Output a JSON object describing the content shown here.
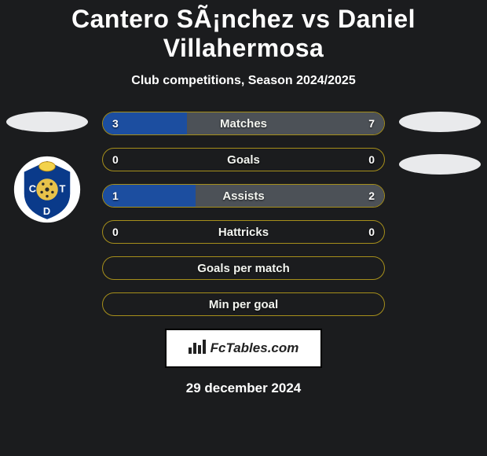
{
  "header": {
    "title": "Cantero SÃ¡nchez vs Daniel Villahermosa",
    "subtitle": "Club competitions, Season 2024/2025"
  },
  "players": {
    "left": {
      "team_badge_bg": "#ffffff",
      "team_badge_shield": "#0a3a8a",
      "team_badge_accent": "#f3d24b",
      "team_badge_text": "CDT"
    }
  },
  "stats": {
    "rows": [
      {
        "label": "Matches",
        "left": "3",
        "right": "7",
        "left_pct": 30,
        "right_pct": 70
      },
      {
        "label": "Goals",
        "left": "0",
        "right": "0",
        "left_pct": 0,
        "right_pct": 0
      },
      {
        "label": "Assists",
        "left": "1",
        "right": "2",
        "left_pct": 33,
        "right_pct": 67
      },
      {
        "label": "Hattricks",
        "left": "0",
        "right": "0",
        "left_pct": 0,
        "right_pct": 0
      },
      {
        "label": "Goals per match",
        "left": "",
        "right": "",
        "left_pct": 0,
        "right_pct": 0
      },
      {
        "label": "Min per goal",
        "left": "",
        "right": "",
        "left_pct": 0,
        "right_pct": 0
      }
    ],
    "bar_left_color": "#1c4ea0",
    "bar_right_color": "#4c5157",
    "row_border_color": "#a68f1b",
    "row_bg_color": "#1b1c1e",
    "label_color": "#f3f5f0"
  },
  "brand": {
    "text": "FcTables.com"
  },
  "footer": {
    "date": "29 december 2024"
  },
  "colors": {
    "page_bg": "#1b1c1e",
    "pill_bg": "#e9eaec"
  }
}
